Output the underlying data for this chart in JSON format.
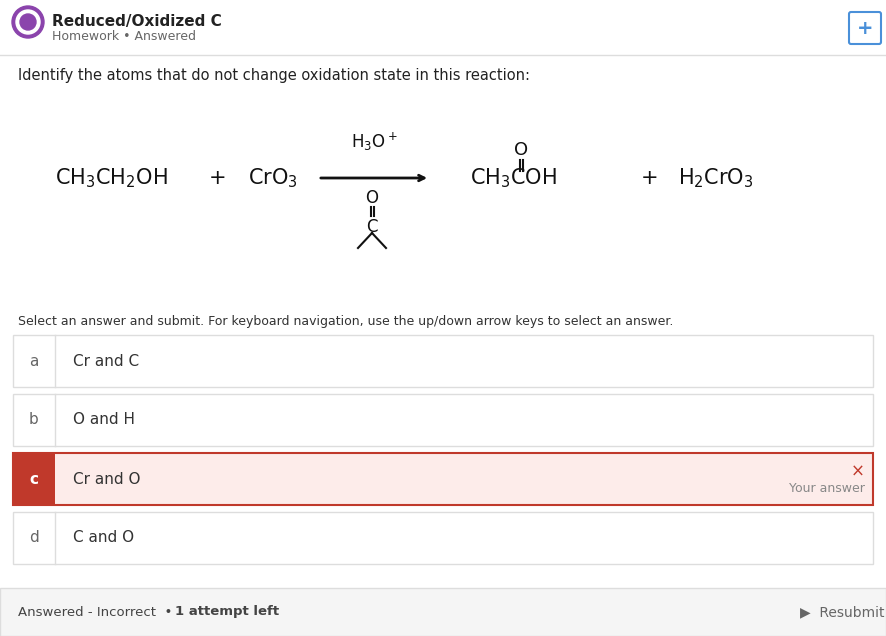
{
  "title": "Reduced/Oxidized C",
  "subtitle": "Homework • Answered",
  "question": "Identify the atoms that do not change oxidation state in this reaction:",
  "bg_color": "#ffffff",
  "header_bg": "#ffffff",
  "footer_bg": "#f5f5f5",
  "border_color": "#dddddd",
  "answer_label_color": "#c0392b",
  "answer_bg_color": "#fdecea",
  "answer_border_color": "#c0392b",
  "options": [
    {
      "letter": "a",
      "text": "Cr and C",
      "selected": false
    },
    {
      "letter": "b",
      "text": "O and H",
      "selected": false
    },
    {
      "letter": "c",
      "text": "Cr and O",
      "selected": true
    },
    {
      "letter": "d",
      "text": "C and O",
      "selected": false
    }
  ],
  "footer_text": "Answered - Incorrect • 1 attempt left",
  "resubmit_text": "Resubmit",
  "select_instruction": "Select an answer and submit. For keyboard navigation, use the up/down arrow keys to select an answer.",
  "icon_color": "#8b44ac",
  "plus_icon_color": "#4a90d9",
  "your_answer_text": "Your answer"
}
